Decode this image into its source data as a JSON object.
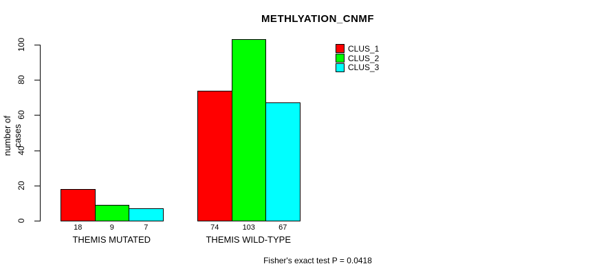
{
  "chart_data": {
    "type": "bar",
    "title": "METHLYATION_CNMF",
    "xlabel": "",
    "ylabel": "number of cases",
    "categories": [
      "THEMIS MUTATED",
      "THEMIS WILD-TYPE"
    ],
    "series": [
      {
        "name": "CLUS_1",
        "color": "#ff0000",
        "values": [
          18,
          74
        ]
      },
      {
        "name": "CLUS_2",
        "color": "#00ff00",
        "values": [
          9,
          103
        ]
      },
      {
        "name": "CLUS_3",
        "color": "#00ffff",
        "values": [
          7,
          67
        ]
      }
    ],
    "ylim": [
      0,
      100
    ],
    "yticks": [
      0,
      20,
      40,
      60,
      80,
      100
    ],
    "grid": false,
    "legend_position": "top-right",
    "bar_value_labels": true,
    "annotation": "Fisher's exact test P = 0.0418"
  }
}
